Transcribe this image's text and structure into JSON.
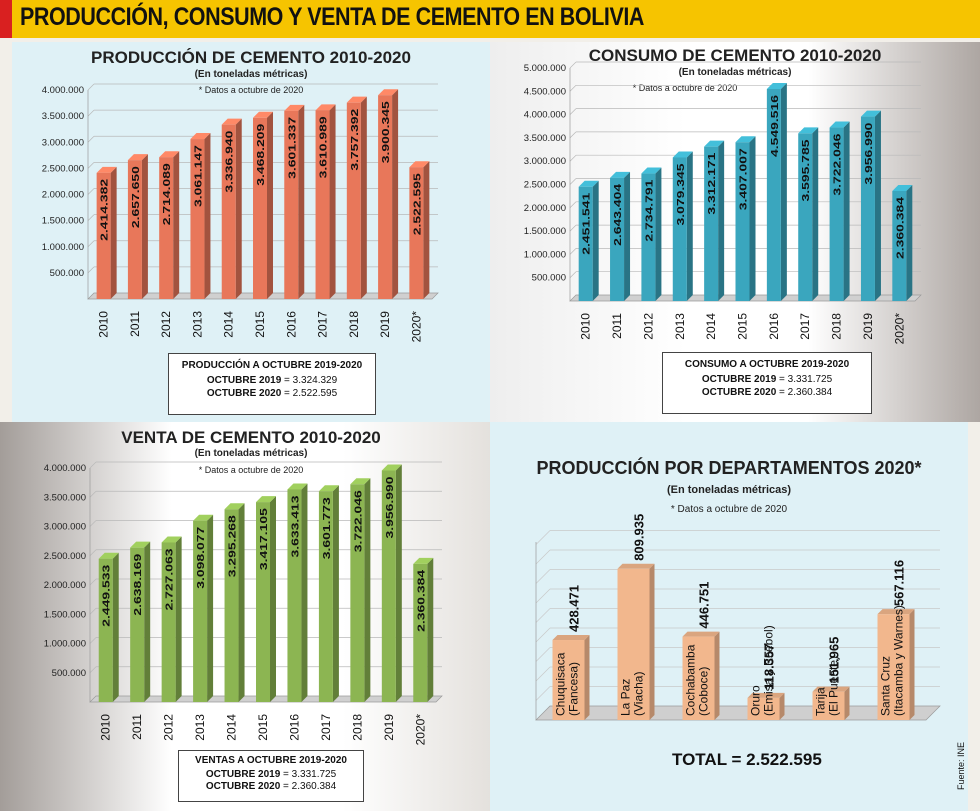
{
  "header": {
    "title": "PRODUCCIÓN, CONSUMO Y VENTA DE CEMENTO EN BOLIVIA"
  },
  "colors": {
    "produccion": "#e8775a",
    "consumo": "#3aa6be",
    "venta": "#8cb552",
    "departamentos": "#f2b78d",
    "banner": "#f6c400",
    "banner_accent": "#d92020"
  },
  "chart_data": [
    {
      "type": "bar",
      "title": "PRODUCCIÓN DE CEMENTO 2010-2020",
      "subtitle": "(En toneladas métricas)",
      "note": "* Datos a octubre de 2020",
      "categories": [
        "2010",
        "2011",
        "2012",
        "2013",
        "2014",
        "2015",
        "2016",
        "2017",
        "2018",
        "2019",
        "2020*"
      ],
      "values": [
        2414382,
        2657650,
        2714089,
        3061147,
        3336940,
        3468209,
        3601337,
        3610989,
        3757392,
        3900345,
        2522595
      ],
      "value_labels": [
        "2.414.382",
        "2.657.650",
        "2.714.089",
        "3.061.147",
        "3.336.940",
        "3.468.209",
        "3.601.337",
        "3.610.989",
        "3.757.392",
        "3.900.345",
        "2.522.595"
      ],
      "ylim": [
        0,
        4000000
      ],
      "yticks": [
        "500.000",
        "1.000.000",
        "1.500.000",
        "2.000.000",
        "2.500.000",
        "3.000.000",
        "3.500.000",
        "4.000.000"
      ],
      "color": "#e8775a",
      "grid": true
    },
    {
      "type": "bar",
      "title": "CONSUMO DE CEMENTO 2010-2020",
      "subtitle": "(En toneladas métricas)",
      "note": "* Datos a octubre de 2020",
      "categories": [
        "2010",
        "2011",
        "2012",
        "2013",
        "2014",
        "2015",
        "2016",
        "2017",
        "2018",
        "2019",
        "2020*"
      ],
      "values": [
        2451541,
        2643404,
        2734791,
        3079345,
        3312171,
        3407007,
        4549516,
        3595785,
        3722046,
        3956990,
        2360384
      ],
      "value_labels": [
        "2.451.541",
        "2.643.404",
        "2.734.791",
        "3.079.345",
        "3.312.171",
        "3.407.007",
        "4.549.516",
        "3.595.785",
        "3.722.046",
        "3.956.990",
        "2.360.384"
      ],
      "ylim": [
        0,
        5000000
      ],
      "yticks": [
        "500.000",
        "1.000.000",
        "1.500.000",
        "2.000.000",
        "2.500.000",
        "3.000.000",
        "3.500.000",
        "4.000.000",
        "4.500.000",
        "5.000.000"
      ],
      "color": "#3aa6be",
      "grid": true
    },
    {
      "type": "bar",
      "title": "VENTA DE CEMENTO 2010-2020",
      "subtitle": "(En toneladas métricas)",
      "note": "* Datos a octubre de 2020",
      "categories": [
        "2010",
        "2011",
        "2012",
        "2013",
        "2014",
        "2015",
        "2016",
        "2017",
        "2018",
        "2019",
        "2020*"
      ],
      "values": [
        2449533,
        2638169,
        2727063,
        3098077,
        3295268,
        3417105,
        3633413,
        3601773,
        3722046,
        3956990,
        2360384
      ],
      "value_labels": [
        "2.449.533",
        "2.638.169",
        "2.727.063",
        "3.098.077",
        "3.295.268",
        "3.417.105",
        "3.633.413",
        "3.601.773",
        "3.722.046",
        "3.956.990",
        "2.360.384"
      ],
      "ylim": [
        0,
        4000000
      ],
      "yticks": [
        "500.000",
        "1.000.000",
        "1.500.000",
        "2.000.000",
        "2.500.000",
        "3.000.000",
        "3.500.000",
        "4.000.000"
      ],
      "color": "#8cb552",
      "grid": true
    },
    {
      "type": "bar",
      "title": "PRODUCCIÓN POR DEPARTAMENTOS 2020*",
      "subtitle": "(En toneladas métricas)",
      "note": "* Datos a octubre de 2020",
      "categories": [
        [
          "Chuquisaca",
          "(Fancesa)"
        ],
        [
          "La Paz",
          "(Viacha)"
        ],
        [
          "Cochabamba",
          "(Coboce)"
        ],
        [
          "Oruro",
          "(Emisa y Ecebol)"
        ],
        [
          "Tarija",
          "(El Puente)"
        ],
        [
          "Santa Cruz",
          "(Itacamba y Warnes)"
        ]
      ],
      "values": [
        428471,
        809935,
        446751,
        118357,
        151965,
        567116
      ],
      "value_labels": [
        "428.471",
        "809.935",
        "446.751",
        "118.357",
        "151.965",
        "567.116"
      ],
      "ylim": [
        0,
        900000
      ],
      "color": "#f2b78d",
      "grid": true
    }
  ],
  "summaries": {
    "produccion": {
      "heading": "PRODUCCIÓN A OCTUBRE 2019-2020",
      "l1_label": "OCTUBRE 2019",
      "l1_value": " = 3.324.329",
      "l2_label": "OCTUBRE 2020",
      "l2_value": " = 2.522.595"
    },
    "consumo": {
      "heading": "CONSUMO A OCTUBRE 2019-2020",
      "l1_label": "OCTUBRE 2019",
      "l1_value": " = 3.331.725",
      "l2_label": "OCTUBRE 2020",
      "l2_value": " = 2.360.384"
    },
    "venta": {
      "heading": "VENTAS A OCTUBRE 2019-2020",
      "l1_label": "OCTUBRE 2019",
      "l1_value": " = 3.331.725",
      "l2_label": "OCTUBRE 2020",
      "l2_value": " = 2.360.384"
    }
  },
  "total": "TOTAL = 2.522.595",
  "source": "Fuente: INE"
}
